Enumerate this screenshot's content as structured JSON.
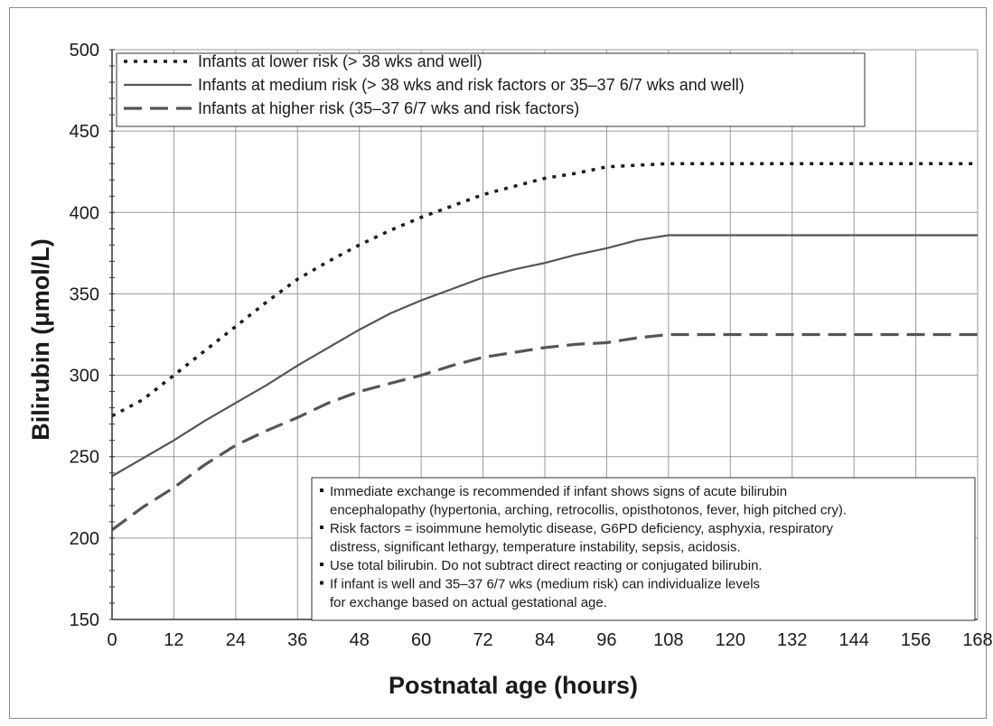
{
  "chart_data": {
    "type": "line",
    "xlabel": "Postnatal age (hours)",
    "ylabel": "Bilirubin (μmol/L)",
    "xlim": [
      0,
      168
    ],
    "ylim": [
      150,
      500
    ],
    "x_ticks": [
      0,
      12,
      24,
      36,
      48,
      60,
      72,
      84,
      96,
      108,
      120,
      132,
      144,
      156,
      168
    ],
    "y_ticks": [
      150,
      200,
      250,
      300,
      350,
      400,
      450,
      500
    ],
    "grid": true,
    "legend_position": "top-left",
    "series": [
      {
        "name": "Infants at lower  risk (> 38 wks and well)",
        "style": "dotted",
        "color": "#1a1a1a",
        "x": [
          0,
          6,
          12,
          18,
          24,
          30,
          36,
          42,
          48,
          54,
          60,
          66,
          72,
          78,
          84,
          90,
          96,
          102,
          108,
          120,
          132,
          144,
          156,
          168
        ],
        "y": [
          275,
          285,
          300,
          315,
          330,
          345,
          359,
          370,
          380,
          389,
          397,
          404,
          411,
          416,
          421,
          424,
          428,
          429,
          430,
          430,
          430,
          430,
          430,
          430
        ]
      },
      {
        "name": "Infants at medium risk (> 38 wks and risk factors or 35–37 6/7 wks  and well)",
        "style": "solid",
        "color": "#555555",
        "x": [
          0,
          6,
          12,
          18,
          24,
          30,
          36,
          42,
          48,
          54,
          60,
          66,
          72,
          78,
          84,
          90,
          96,
          102,
          108,
          120,
          132,
          144,
          156,
          168
        ],
        "y": [
          238,
          249,
          260,
          272,
          283,
          294,
          306,
          317,
          328,
          338,
          346,
          353,
          360,
          365,
          369,
          374,
          378,
          383,
          386,
          386,
          386,
          386,
          386,
          386
        ]
      },
      {
        "name": "Infants at higher risk (35–37 6/7 wks and risk factors)",
        "style": "dashed",
        "color": "#555555",
        "x": [
          0,
          6,
          12,
          18,
          24,
          30,
          36,
          42,
          48,
          54,
          60,
          66,
          72,
          78,
          84,
          90,
          96,
          102,
          108,
          120,
          132,
          144,
          156,
          168
        ],
        "y": [
          205,
          219,
          231,
          245,
          257,
          266,
          274,
          283,
          290,
          295,
          300,
          306,
          311,
          314,
          317,
          319,
          320,
          323,
          325,
          325,
          325,
          325,
          325,
          325
        ]
      }
    ],
    "notes": [
      "Immediate exchange is recommended if infant shows signs of acute bilirubin",
      "encephalopathy (hypertonia, arching, retrocollis, opisthotonos, fever, high pitched cry).",
      "Risk factors = isoimmune hemolytic disease, G6PD deficiency, asphyxia, respiratory",
      "distress, significant lethargy, temperature instability, sepsis, acidosis.",
      "Use total bilirubin. Do not subtract direct reacting or conjugated bilirubin.",
      "If infant is well and 35–37 6/7 wks (medium risk) can individualize levels",
      "for exchange based on actual gestational age."
    ],
    "note_bullets": [
      true,
      false,
      true,
      false,
      true,
      true,
      false
    ]
  }
}
